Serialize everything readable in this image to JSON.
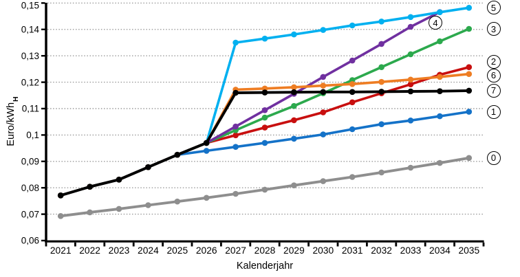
{
  "chart_data": {
    "type": "line",
    "title": "",
    "xlabel": "Kalenderjahr",
    "ylabel": "Euro/kWh",
    "ylabel_subscript": "H",
    "x_categories": [
      "2021",
      "2022",
      "2023",
      "2024",
      "2025",
      "2026",
      "2027",
      "2028",
      "2029",
      "2030",
      "2031",
      "2032",
      "2033",
      "2034",
      "2035"
    ],
    "ylim": [
      0.06,
      0.15
    ],
    "y_tick_values": [
      0.06,
      0.07,
      0.08,
      0.09,
      0.1,
      0.11,
      0.12,
      0.13,
      0.14,
      0.15
    ],
    "y_tick_labels": [
      "0,06",
      "0,07",
      "0,08",
      "0,09",
      "0,1",
      "0,11",
      "0,12",
      "0,13",
      "0,14",
      "0,15"
    ],
    "grid": "dotted-horizontal",
    "legend_position": "circled-badges-at-line-ends",
    "series": [
      {
        "id": "0",
        "label": "0",
        "color": "#8E8E8E",
        "values": [
          0.0693,
          0.0707,
          0.072,
          0.0734,
          0.0748,
          0.0762,
          0.0777,
          0.0793,
          0.0809,
          0.0825,
          0.0841,
          0.0858,
          0.0876,
          0.0894,
          0.0913
        ]
      },
      {
        "id": "1",
        "label": "1",
        "color": "#1472C8",
        "values": [
          0.0771,
          0.0804,
          0.0831,
          0.0878,
          0.0925,
          0.094,
          0.0955,
          0.097,
          0.0986,
          0.1002,
          0.1022,
          0.1041,
          0.1055,
          0.1071,
          0.1088
        ]
      },
      {
        "id": "2",
        "label": "2",
        "color": "#C80F0F",
        "label_dy": -8,
        "values": [
          0.0771,
          0.0804,
          0.0831,
          0.0878,
          0.0925,
          0.097,
          0.0999,
          0.1028,
          0.1056,
          0.1086,
          0.1124,
          0.1158,
          0.1192,
          0.1228,
          0.1257
        ]
      },
      {
        "id": "3",
        "label": "3",
        "color": "#2CA94D",
        "values": [
          0.0771,
          0.0804,
          0.0831,
          0.0878,
          0.0925,
          0.097,
          0.1018,
          0.1066,
          0.111,
          0.1158,
          0.1208,
          0.1257,
          0.1306,
          0.1355,
          0.1402
        ]
      },
      {
        "id": "4",
        "label": "4",
        "color": "#7030A0",
        "label_abs": [
          633,
          33
        ],
        "values": [
          0.0771,
          0.0804,
          0.0831,
          0.0878,
          0.0925,
          0.097,
          0.1032,
          0.1094,
          0.1156,
          0.122,
          0.1282,
          0.1345,
          0.141,
          0.1466,
          null
        ]
      },
      {
        "id": "5",
        "label": "5",
        "color": "#00B0F0",
        "values": [
          0.0771,
          0.0804,
          0.0831,
          0.0878,
          0.0925,
          0.097,
          0.135,
          0.1365,
          0.1381,
          0.1398,
          0.1415,
          0.143,
          0.1447,
          0.1465,
          0.1482
        ]
      },
      {
        "id": "6",
        "label": "6",
        "color": "#EE7D23",
        "label_dy": 2,
        "values": [
          0.0771,
          0.0804,
          0.0831,
          0.0878,
          0.0925,
          0.097,
          0.1172,
          0.1176,
          0.1181,
          0.1187,
          0.1193,
          0.1201,
          0.121,
          0.122,
          0.1231
        ]
      },
      {
        "id": "7",
        "label": "7",
        "color": "#000000",
        "values": [
          0.0771,
          0.0804,
          0.0831,
          0.0878,
          0.0925,
          0.097,
          0.116,
          0.1161,
          0.1162,
          0.1163,
          0.1163,
          0.1164,
          0.1165,
          0.1166,
          0.1168
        ]
      }
    ]
  }
}
